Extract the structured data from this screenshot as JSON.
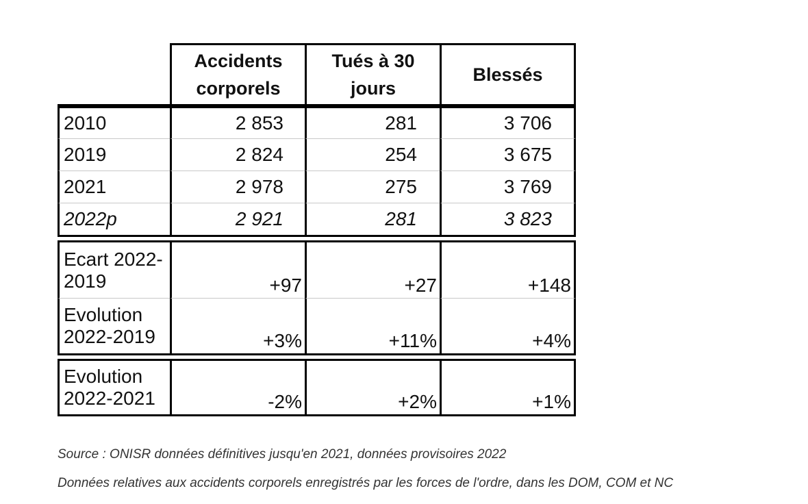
{
  "table": {
    "headers": [
      "Accidents\ncorporels",
      "Tués à 30\njours",
      "Blessés"
    ],
    "years": [
      {
        "label": "2010",
        "values": [
          "2 853",
          "281",
          "3 706"
        ],
        "italic": false
      },
      {
        "label": "2019",
        "values": [
          "2 824",
          "254",
          "3 675"
        ],
        "italic": false
      },
      {
        "label": "2021",
        "values": [
          "2 978",
          "275",
          "3 769"
        ],
        "italic": false
      },
      {
        "label": "2022p",
        "values": [
          "2 921",
          "281",
          "3 823"
        ],
        "italic": true
      }
    ],
    "comparisons": [
      {
        "label": "Ecart 2022-\n2019",
        "values": [
          "+97",
          "+27",
          "+148"
        ]
      },
      {
        "label": "Evolution\n2022-2019",
        "values": [
          "+3%",
          "+11%",
          "+4%"
        ]
      }
    ],
    "evolution_2021": {
      "label": "Evolution\n2022-2021",
      "values": [
        "-2%",
        "+2%",
        "+1%"
      ]
    }
  },
  "footnotes": {
    "source": "Source : ONISR données définitives jusqu'en 2021, données provisoires 2022",
    "scope": "Données relatives aux accidents corporels enregistrés par les forces de l'ordre, dans les DOM, COM et NC"
  }
}
